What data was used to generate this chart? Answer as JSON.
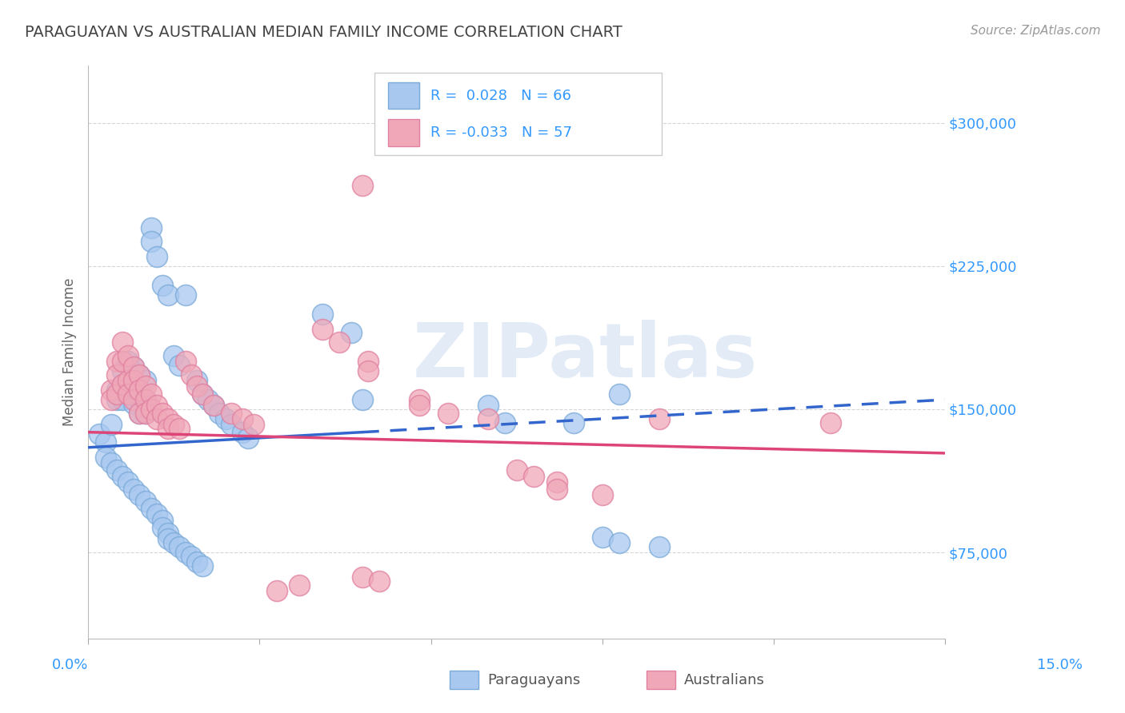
{
  "title": "PARAGUAYAN VS AUSTRALIAN MEDIAN FAMILY INCOME CORRELATION CHART",
  "source": "Source: ZipAtlas.com",
  "ylabel": "Median Family Income",
  "yticks": [
    75000,
    150000,
    225000,
    300000
  ],
  "ytick_labels": [
    "$75,000",
    "$150,000",
    "$225,000",
    "$300,000"
  ],
  "xlim": [
    0.0,
    0.15
  ],
  "ylim": [
    30000,
    330000
  ],
  "watermark": "ZIPatlas",
  "blue_color": "#a8c8f0",
  "pink_color": "#f0a8b8",
  "blue_edge_color": "#7aaad8",
  "pink_edge_color": "#e080a0",
  "blue_line_color": "#3366cc",
  "pink_line_color": "#dd4477",
  "background_color": "#ffffff",
  "grid_color": "#cccccc",
  "title_color": "#444444",
  "axis_color": "#3399ff",
  "blue_scatter": [
    [
      0.002,
      137000
    ],
    [
      0.003,
      133000
    ],
    [
      0.004,
      142000
    ],
    [
      0.005,
      160000
    ],
    [
      0.005,
      155000
    ],
    [
      0.006,
      170000
    ],
    [
      0.006,
      163000
    ],
    [
      0.006,
      155000
    ],
    [
      0.007,
      175000
    ],
    [
      0.007,
      165000
    ],
    [
      0.007,
      158000
    ],
    [
      0.008,
      172000
    ],
    [
      0.008,
      160000
    ],
    [
      0.008,
      153000
    ],
    [
      0.009,
      168000
    ],
    [
      0.009,
      158000
    ],
    [
      0.009,
      148000
    ],
    [
      0.01,
      165000
    ],
    [
      0.01,
      155000
    ],
    [
      0.01,
      148000
    ],
    [
      0.011,
      245000
    ],
    [
      0.011,
      238000
    ],
    [
      0.012,
      230000
    ],
    [
      0.013,
      215000
    ],
    [
      0.014,
      210000
    ],
    [
      0.015,
      178000
    ],
    [
      0.016,
      173000
    ],
    [
      0.017,
      210000
    ],
    [
      0.019,
      165000
    ],
    [
      0.02,
      158000
    ],
    [
      0.021,
      155000
    ],
    [
      0.022,
      152000
    ],
    [
      0.023,
      148000
    ],
    [
      0.024,
      145000
    ],
    [
      0.025,
      142000
    ],
    [
      0.027,
      138000
    ],
    [
      0.028,
      135000
    ],
    [
      0.003,
      125000
    ],
    [
      0.004,
      122000
    ],
    [
      0.005,
      118000
    ],
    [
      0.006,
      115000
    ],
    [
      0.007,
      112000
    ],
    [
      0.008,
      108000
    ],
    [
      0.009,
      105000
    ],
    [
      0.01,
      102000
    ],
    [
      0.011,
      98000
    ],
    [
      0.012,
      95000
    ],
    [
      0.013,
      92000
    ],
    [
      0.013,
      88000
    ],
    [
      0.014,
      85000
    ],
    [
      0.014,
      82000
    ],
    [
      0.015,
      80000
    ],
    [
      0.016,
      78000
    ],
    [
      0.017,
      75000
    ],
    [
      0.018,
      73000
    ],
    [
      0.019,
      70000
    ],
    [
      0.02,
      68000
    ],
    [
      0.041,
      200000
    ],
    [
      0.046,
      190000
    ],
    [
      0.048,
      155000
    ],
    [
      0.07,
      152000
    ],
    [
      0.073,
      143000
    ],
    [
      0.085,
      143000
    ],
    [
      0.093,
      158000
    ],
    [
      0.09,
      83000
    ],
    [
      0.093,
      80000
    ],
    [
      0.1,
      78000
    ]
  ],
  "pink_scatter": [
    [
      0.004,
      160000
    ],
    [
      0.004,
      155000
    ],
    [
      0.005,
      175000
    ],
    [
      0.005,
      168000
    ],
    [
      0.005,
      158000
    ],
    [
      0.006,
      185000
    ],
    [
      0.006,
      175000
    ],
    [
      0.006,
      163000
    ],
    [
      0.007,
      178000
    ],
    [
      0.007,
      165000
    ],
    [
      0.007,
      158000
    ],
    [
      0.008,
      172000
    ],
    [
      0.008,
      165000
    ],
    [
      0.008,
      155000
    ],
    [
      0.009,
      168000
    ],
    [
      0.009,
      160000
    ],
    [
      0.009,
      148000
    ],
    [
      0.01,
      162000
    ],
    [
      0.01,
      155000
    ],
    [
      0.01,
      148000
    ],
    [
      0.011,
      158000
    ],
    [
      0.011,
      150000
    ],
    [
      0.012,
      152000
    ],
    [
      0.012,
      145000
    ],
    [
      0.013,
      148000
    ],
    [
      0.014,
      145000
    ],
    [
      0.014,
      140000
    ],
    [
      0.015,
      142000
    ],
    [
      0.016,
      140000
    ],
    [
      0.017,
      175000
    ],
    [
      0.018,
      168000
    ],
    [
      0.019,
      162000
    ],
    [
      0.02,
      158000
    ],
    [
      0.022,
      152000
    ],
    [
      0.025,
      148000
    ],
    [
      0.027,
      145000
    ],
    [
      0.029,
      142000
    ],
    [
      0.048,
      267000
    ],
    [
      0.041,
      192000
    ],
    [
      0.044,
      185000
    ],
    [
      0.049,
      175000
    ],
    [
      0.049,
      170000
    ],
    [
      0.058,
      155000
    ],
    [
      0.058,
      152000
    ],
    [
      0.063,
      148000
    ],
    [
      0.07,
      145000
    ],
    [
      0.075,
      118000
    ],
    [
      0.078,
      115000
    ],
    [
      0.082,
      112000
    ],
    [
      0.082,
      108000
    ],
    [
      0.09,
      105000
    ],
    [
      0.1,
      145000
    ],
    [
      0.033,
      55000
    ],
    [
      0.037,
      58000
    ],
    [
      0.048,
      62000
    ],
    [
      0.051,
      60000
    ],
    [
      0.13,
      143000
    ]
  ]
}
